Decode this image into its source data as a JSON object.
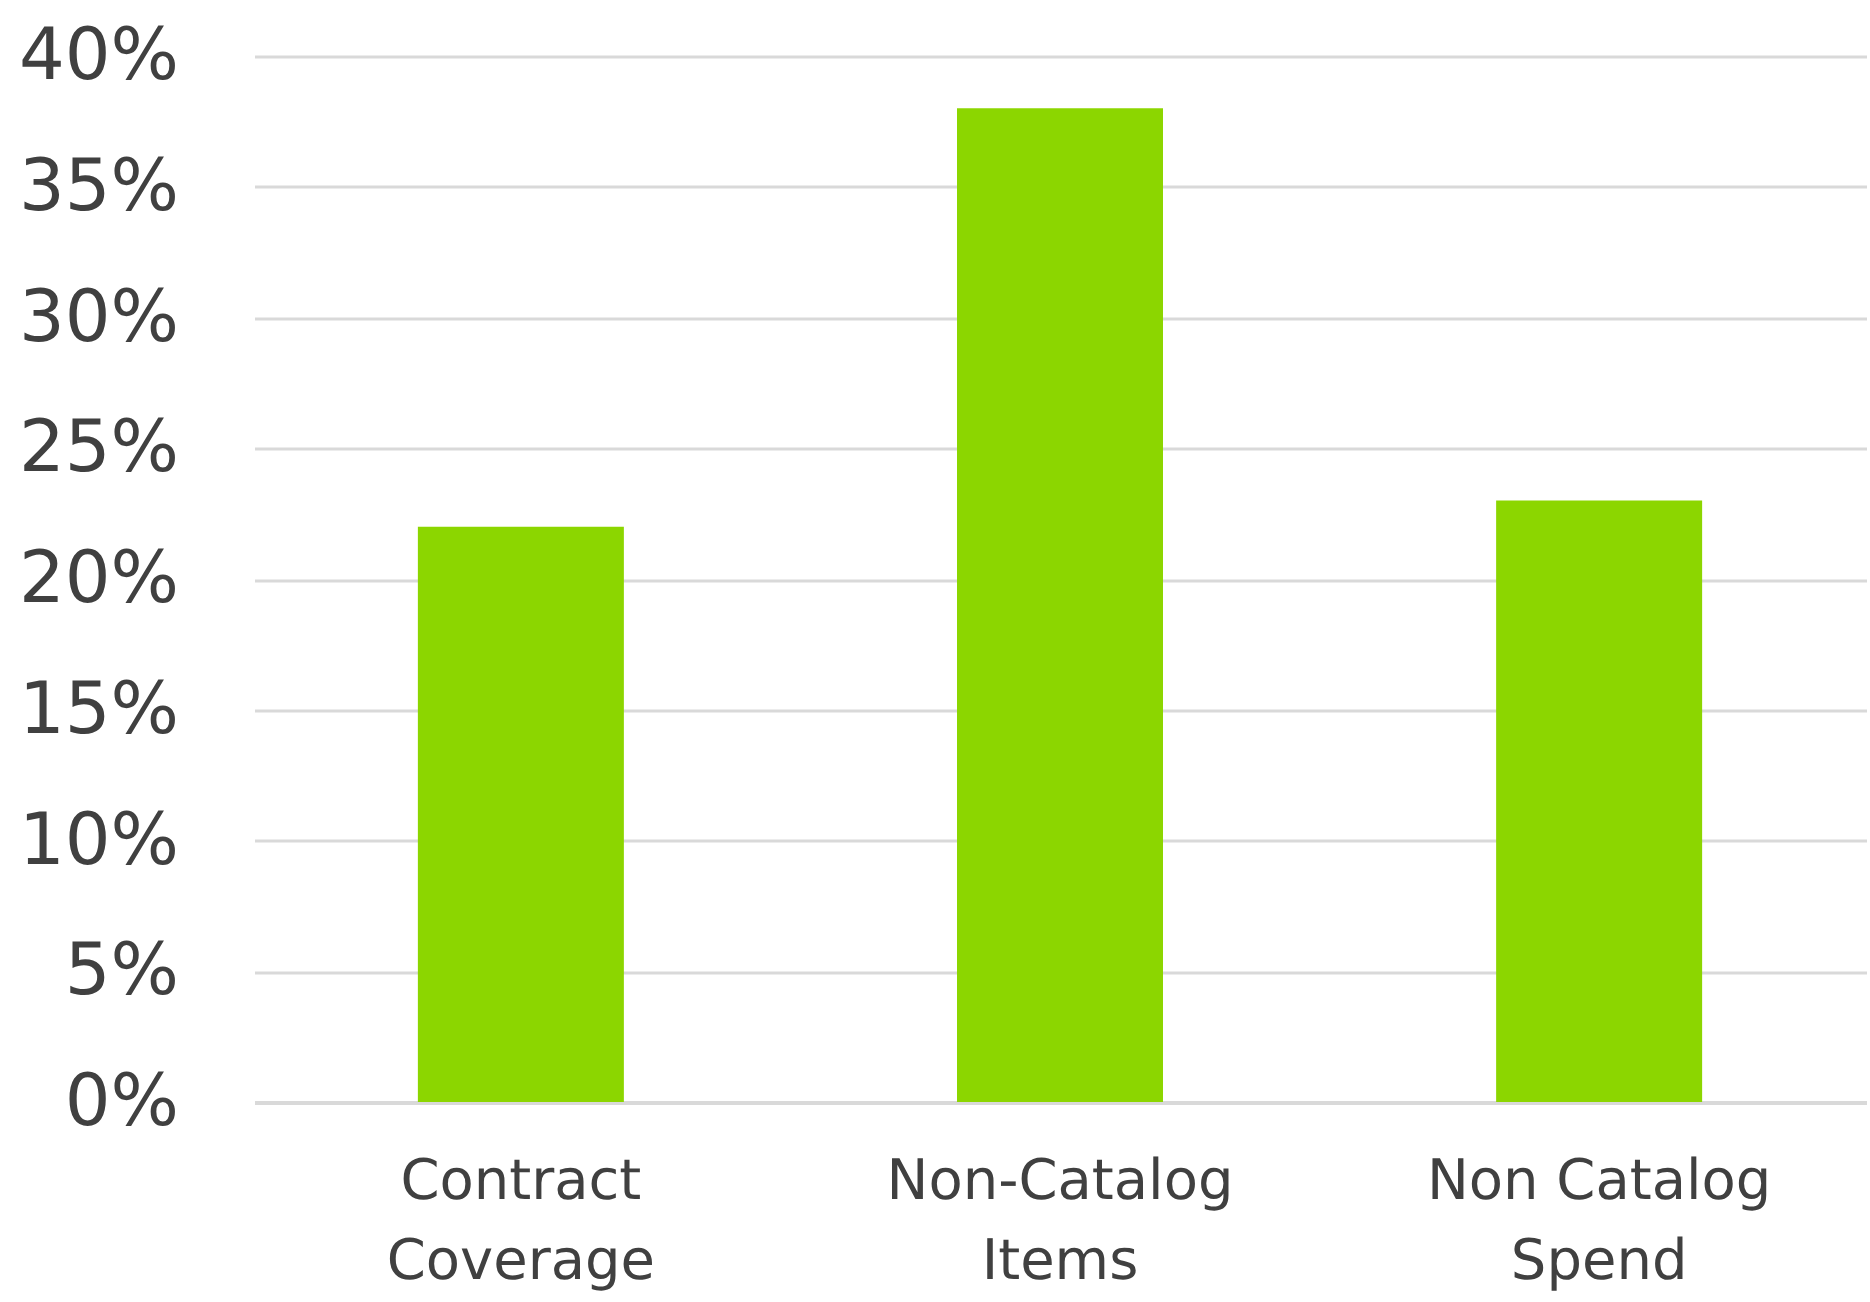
{
  "chart_data": {
    "type": "bar",
    "categories": [
      "Contract\nCoverage",
      "Non-Catalog\nItems",
      "Non Catalog\nSpend"
    ],
    "values": [
      22,
      38,
      23
    ],
    "color": "#8cd600",
    "ylim": [
      0,
      40
    ],
    "yticks": [
      {
        "value": 0,
        "label": "0%"
      },
      {
        "value": 5,
        "label": "5%"
      },
      {
        "value": 10,
        "label": "10%"
      },
      {
        "value": 15,
        "label": "15%"
      },
      {
        "value": 20,
        "label": "20%"
      },
      {
        "value": 25,
        "label": "25%"
      },
      {
        "value": 30,
        "label": "30%"
      },
      {
        "value": 35,
        "label": "35%"
      },
      {
        "value": 40,
        "label": "40%"
      }
    ],
    "grid": "y"
  }
}
